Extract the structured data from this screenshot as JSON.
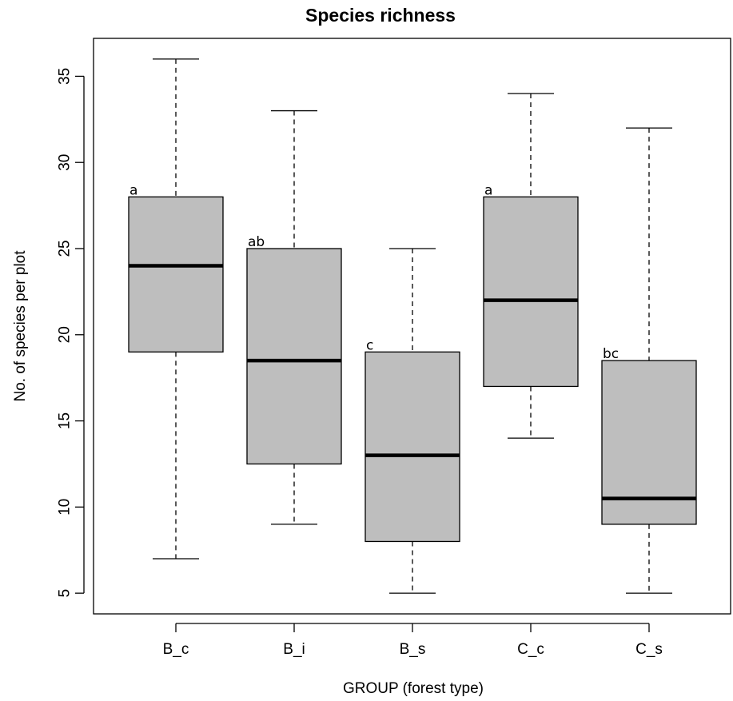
{
  "chart_data": {
    "type": "box",
    "title": "Species richness",
    "xlabel": "GROUP (forest type)",
    "ylabel": "No. of species per plot",
    "ylim": [
      3.8,
      37.2
    ],
    "yticks": [
      5,
      10,
      15,
      20,
      25,
      30,
      35
    ],
    "box_color": "#bebebe",
    "groups": [
      {
        "name": "B_c",
        "min": 7,
        "q1": 19,
        "median": 24,
        "q3": 28,
        "max": 36,
        "letter": "a"
      },
      {
        "name": "B_i",
        "min": 9,
        "q1": 12.5,
        "median": 18.5,
        "q3": 25,
        "max": 33,
        "letter": "ab"
      },
      {
        "name": "B_s",
        "min": 5,
        "q1": 8,
        "median": 13,
        "q3": 19,
        "max": 25,
        "letter": "c"
      },
      {
        "name": "C_c",
        "min": 14,
        "q1": 17,
        "median": 22,
        "q3": 28,
        "max": 34,
        "letter": "a"
      },
      {
        "name": "C_s",
        "min": 5,
        "q1": 9,
        "median": 10.5,
        "q3": 18.5,
        "max": 32,
        "letter": "bc"
      }
    ]
  }
}
